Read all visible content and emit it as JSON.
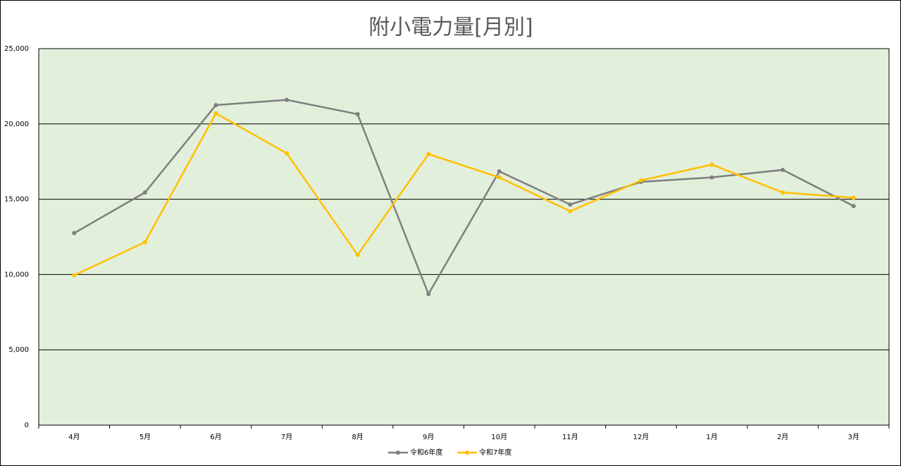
{
  "chart_data": {
    "type": "line",
    "title": "附小電力量[月別]",
    "categories": [
      "4月",
      "5月",
      "6月",
      "7月",
      "8月",
      "9月",
      "10月",
      "11月",
      "12月",
      "1月",
      "2月",
      "3月"
    ],
    "series": [
      {
        "name": "令和6年度",
        "color": "#7f7f7f",
        "values": [
          12750,
          15450,
          21250,
          21600,
          20650,
          8700,
          16850,
          14650,
          16150,
          16450,
          16950,
          14550
        ]
      },
      {
        "name": "令和7年度",
        "color": "#ffc000",
        "values": [
          9950,
          12150,
          20700,
          18050,
          11300,
          18000,
          16450,
          14200,
          16250,
          17300,
          15450,
          15100
        ]
      }
    ],
    "ylim": [
      0,
      25000
    ],
    "yticks": [
      0,
      {
        "value": 5000,
        "label": "5,000"
      },
      {
        "value": 10000,
        "label": "10,000"
      },
      {
        "value": 15000,
        "label": "15,000"
      },
      {
        "value": 20000,
        "label": "20,000"
      },
      {
        "value": 25000,
        "label": "25,000"
      }
    ],
    "grid": true,
    "legend": "bottom",
    "plot_background": "#e2efda"
  }
}
